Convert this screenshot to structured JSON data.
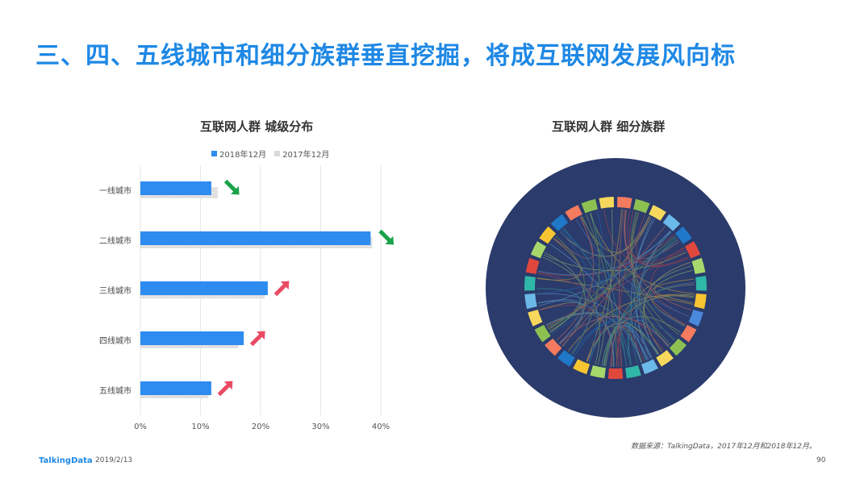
{
  "title": "三、四、五线城市和细分族群垂直挖掘，将成互联网发展风向标",
  "chart_data": [
    {
      "type": "bar",
      "title": "互联网人群  城级分布",
      "categories": [
        "一线城市",
        "二线城市",
        "三线城市",
        "四线城市",
        "五线城市"
      ],
      "series": [
        {
          "name": "2018年12月",
          "values": [
            11.8,
            38.3,
            21.2,
            17.2,
            11.8
          ]
        },
        {
          "name": "2017年12月",
          "values": [
            12.9,
            38.6,
            20.7,
            16.3,
            11.3
          ]
        }
      ],
      "x_ticks": [
        "0%",
        "10%",
        "20%",
        "30%",
        "40%"
      ],
      "xlim": [
        0,
        40
      ],
      "trend": [
        "down",
        "down",
        "up",
        "up",
        "up"
      ],
      "colors": {
        "2018": "#2e8bf0",
        "2017": "#d9d9d9",
        "up": "#e84b63",
        "down": "#1aa34a"
      }
    },
    {
      "type": "chord",
      "title": "互联网人群  细分族群",
      "background_color": "#2b3b6b",
      "segment_colors": [
        "#f47b5e",
        "#8cc152",
        "#f6d95c",
        "#6bb9e8",
        "#1f78c8",
        "#e0483e",
        "#a6d86b",
        "#2fb7a8",
        "#f7c531",
        "#4a89dc",
        "#f47b5e",
        "#8cc152",
        "#f6d95c",
        "#6bb9e8",
        "#2fb7a8",
        "#e0483e",
        "#a6d86b",
        "#f7c531",
        "#1f78c8",
        "#f47b5e",
        "#8cc152",
        "#f6d95c",
        "#6bb9e8",
        "#2fb7a8",
        "#e0483e",
        "#a6d86b",
        "#f7c531",
        "#1f78c8",
        "#f47b5e",
        "#8cc152",
        "#f6d95c"
      ]
    }
  ],
  "source": "数据来源：TalkingData，2017年12月和2018年12月。",
  "footer": {
    "brand": "TalkingData",
    "date": "2019/2/13",
    "page": "90"
  }
}
